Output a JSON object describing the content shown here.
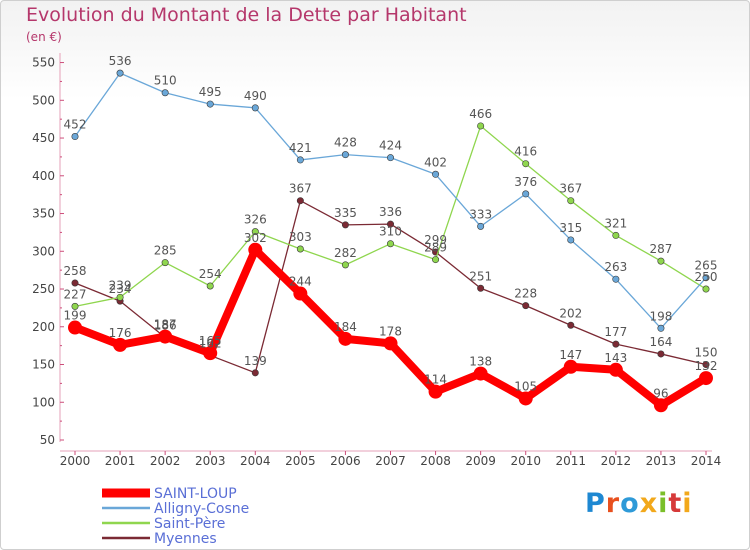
{
  "chart_data": {
    "type": "line",
    "title": "Evolution du Montant de la Dette par Habitant",
    "subtitle": "(en €)",
    "x": [
      "2000",
      "2001",
      "2002",
      "2003",
      "2004",
      "2005",
      "2006",
      "2007",
      "2008",
      "2009",
      "2010",
      "2011",
      "2012",
      "2013",
      "2014"
    ],
    "yticks": [
      50,
      100,
      150,
      200,
      250,
      300,
      350,
      400,
      450,
      500,
      550
    ],
    "ylim": [
      50,
      560
    ],
    "grid": false,
    "legend_position": "bottom-left",
    "series": [
      {
        "name": "SAINT-LOUP",
        "color": "#ff0000",
        "values": [
          199,
          176,
          187,
          165,
          302,
          244,
          184,
          178,
          114,
          138,
          105,
          147,
          143,
          96,
          132
        ]
      },
      {
        "name": "Alligny-Cosne",
        "color": "#6aa7d8",
        "values": [
          452,
          536,
          510,
          495,
          490,
          421,
          428,
          424,
          402,
          333,
          376,
          315,
          263,
          198,
          265
        ]
      },
      {
        "name": "Saint-Père",
        "color": "#8fd64e",
        "values": [
          227,
          239,
          285,
          254,
          326,
          303,
          282,
          310,
          289,
          466,
          416,
          367,
          321,
          287,
          250
        ]
      },
      {
        "name": "Myennes",
        "color": "#7b2a34",
        "values": [
          258,
          234,
          186,
          162,
          139,
          367,
          335,
          336,
          299,
          251,
          228,
          202,
          177,
          164,
          150
        ]
      }
    ]
  },
  "logo": {
    "text": "Proxiti",
    "letters": [
      "P",
      "r",
      "o",
      "x",
      "i",
      "t",
      "i"
    ],
    "colors": [
      "#1e88d2",
      "#e8501e",
      "#2e9ad8",
      "#f2a81b",
      "#7bbf2a",
      "#d63a3a",
      "#f2a81b"
    ]
  }
}
